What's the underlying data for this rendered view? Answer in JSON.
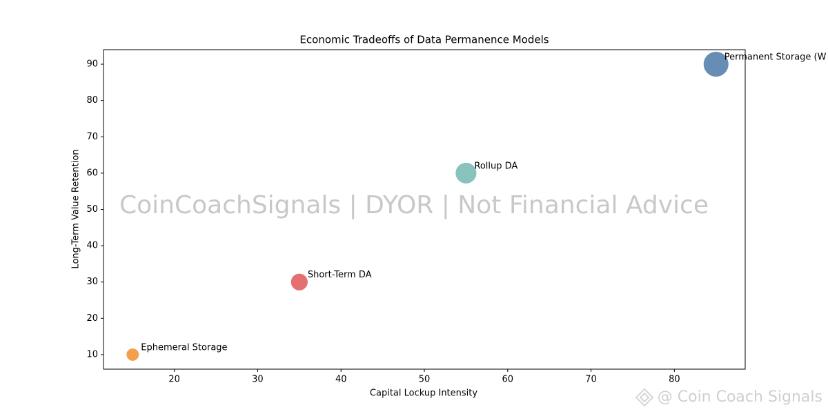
{
  "chart_data": {
    "type": "bubble",
    "title": "Economic Tradeoffs of Data Permanence Models",
    "x_label": "Capital Lockup Intensity",
    "y_label": "Long-Term Value Retention",
    "x": [
      15,
      35,
      55,
      85
    ],
    "values": [
      10,
      30,
      60,
      90
    ],
    "sizes": [
      130,
      240,
      370,
      530
    ],
    "labels": [
      "Ephemeral Storage",
      "Short-Term DA",
      "Rollup DA",
      "Permanent Storage (W"
    ],
    "colors": [
      "#f28e2b",
      "#e15759",
      "#76b7b2",
      "#4e79a7"
    ],
    "xlim": [
      11.5,
      88.5
    ],
    "xticks": [
      20,
      30,
      40,
      50,
      60,
      70,
      80
    ],
    "ylim": [
      6,
      94
    ],
    "yticks": [
      10,
      20,
      30,
      40,
      50,
      60,
      70,
      80,
      90
    ],
    "grid": false,
    "watermark": "CoinCoachSignals | DYOR | Not Financial Advice",
    "footer_mark": "@ Coin Coach Signals"
  }
}
